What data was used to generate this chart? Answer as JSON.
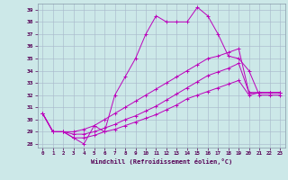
{
  "xlabel": "Windchill (Refroidissement éolien,°C)",
  "background_color": "#cce8e8",
  "grid_color": "#aabbcc",
  "line_color": "#bb00bb",
  "xlim": [
    -0.5,
    23.5
  ],
  "ylim": [
    27.7,
    39.5
  ],
  "x_ticks": [
    0,
    1,
    2,
    3,
    4,
    5,
    6,
    7,
    8,
    9,
    10,
    11,
    12,
    13,
    14,
    15,
    16,
    17,
    18,
    19,
    20,
    21,
    22,
    23
  ],
  "y_ticks": [
    28,
    29,
    30,
    31,
    32,
    33,
    34,
    35,
    36,
    37,
    38,
    39
  ],
  "series": [
    [
      30.5,
      29.0,
      29.0,
      28.5,
      28.0,
      29.5,
      29.0,
      32.0,
      33.5,
      35.0,
      37.0,
      38.5,
      38.0,
      38.0,
      38.0,
      39.2,
      38.5,
      37.0,
      35.2,
      35.0,
      34.0,
      32.0,
      32.0,
      32.0
    ],
    [
      30.5,
      29.0,
      29.0,
      29.0,
      29.2,
      29.5,
      30.0,
      30.5,
      31.0,
      31.5,
      32.0,
      32.5,
      33.0,
      33.5,
      34.0,
      34.5,
      35.0,
      35.2,
      35.5,
      35.8,
      32.2,
      32.2,
      32.2,
      32.2
    ],
    [
      30.5,
      29.0,
      29.0,
      28.8,
      28.8,
      29.0,
      29.3,
      29.6,
      30.0,
      30.3,
      30.7,
      31.1,
      31.6,
      32.1,
      32.6,
      33.1,
      33.6,
      33.9,
      34.2,
      34.6,
      32.2,
      32.2,
      32.2,
      32.2
    ],
    [
      30.5,
      29.0,
      29.0,
      28.5,
      28.5,
      28.7,
      29.0,
      29.2,
      29.5,
      29.8,
      30.1,
      30.4,
      30.8,
      31.2,
      31.7,
      32.0,
      32.3,
      32.6,
      32.9,
      33.2,
      32.0,
      32.2,
      32.2,
      32.2
    ]
  ]
}
